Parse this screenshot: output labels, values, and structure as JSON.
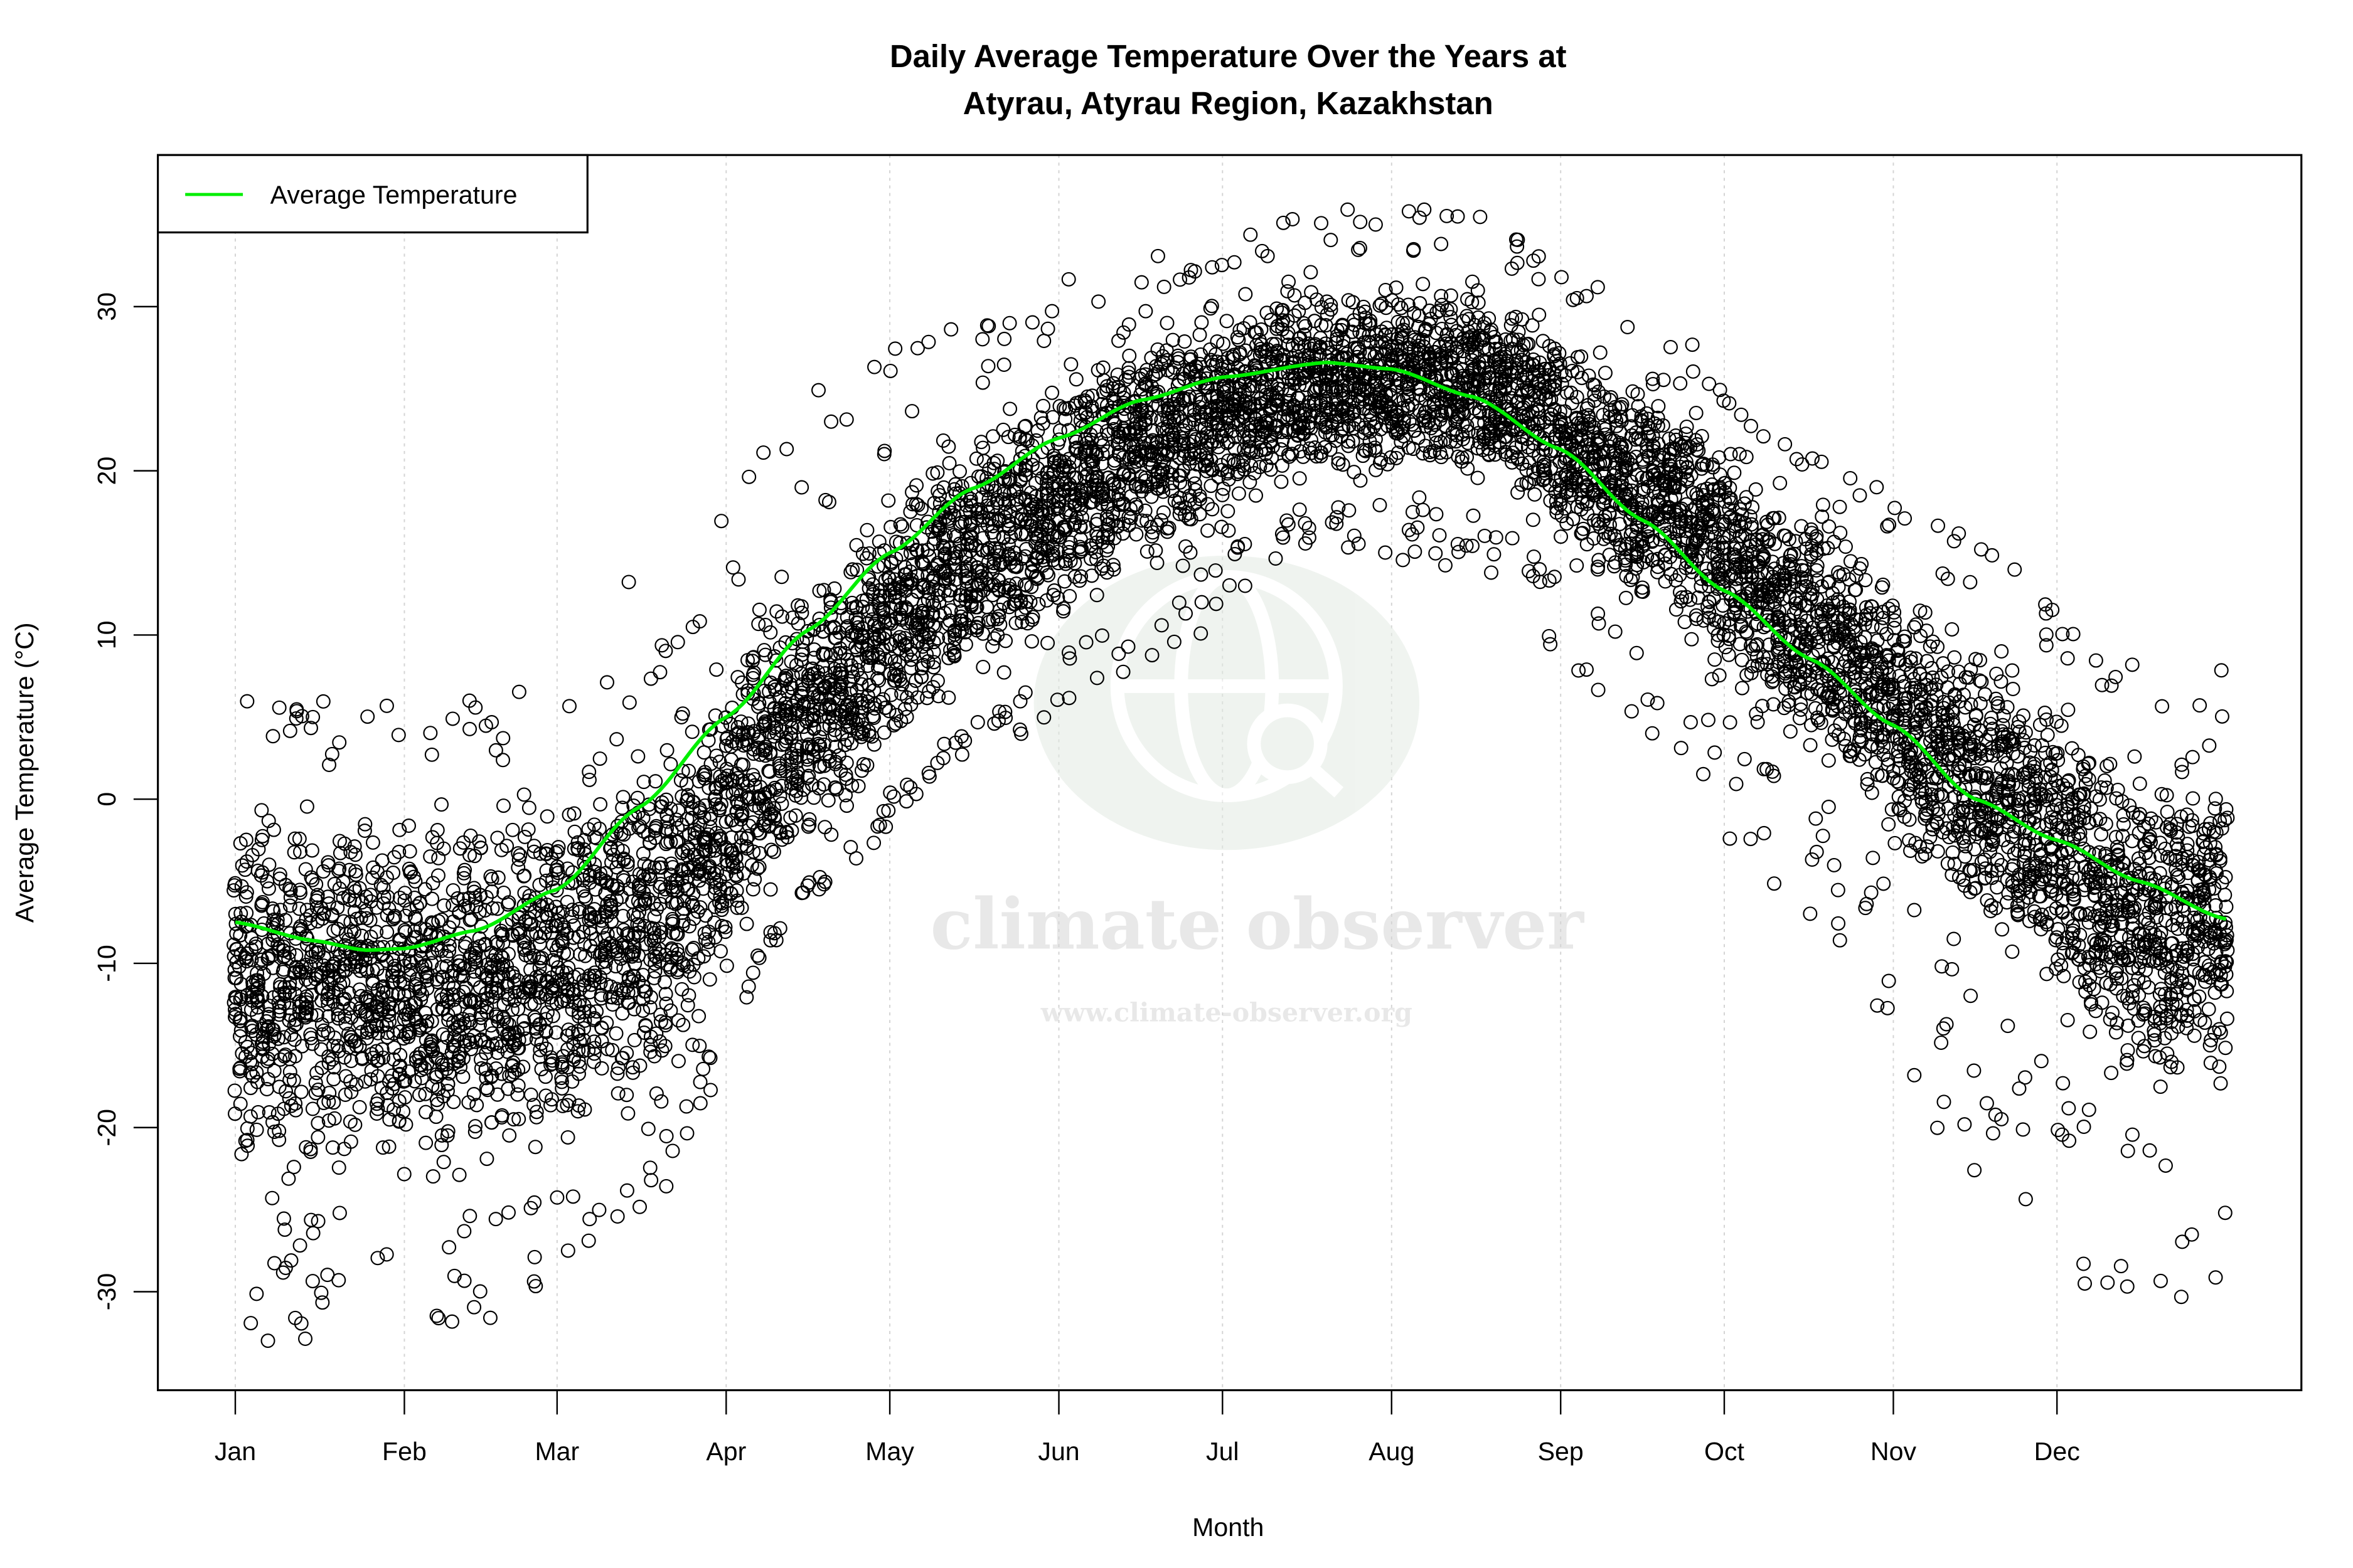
{
  "chart_data": {
    "type": "scatter",
    "title": [
      "Daily Average Temperature Over the Years at",
      "Atyrau, Atyrau Region, Kazakhstan"
    ],
    "xlabel": "Month",
    "ylabel": "Average Temperature (°C)",
    "x_ticks": [
      {
        "label": "Jan",
        "day": 1
      },
      {
        "label": "Feb",
        "day": 32
      },
      {
        "label": "Mar",
        "day": 60
      },
      {
        "label": "Apr",
        "day": 91
      },
      {
        "label": "May",
        "day": 121
      },
      {
        "label": "Jun",
        "day": 152
      },
      {
        "label": "Jul",
        "day": 182
      },
      {
        "label": "Aug",
        "day": 213
      },
      {
        "label": "Sep",
        "day": 244
      },
      {
        "label": "Oct",
        "day": 274
      },
      {
        "label": "Nov",
        "day": 305
      },
      {
        "label": "Dec",
        "day": 335
      }
    ],
    "xlim": [
      1,
      366
    ],
    "ylim": [
      -35,
      37
    ],
    "y_ticks": [
      -30,
      -20,
      -10,
      0,
      10,
      20,
      30
    ],
    "grid": "vertical dotted at month ticks",
    "legend": {
      "position": "top-left",
      "entries": [
        {
          "name": "Average Temperature",
          "color": "#00ee00"
        }
      ]
    },
    "series": [
      {
        "name": "Average Temperature",
        "type": "line",
        "color": "#00ee00",
        "x": [
          1,
          15,
          25,
          32,
          45,
          60,
          75,
          91,
          106,
          121,
          136,
          152,
          167,
          182,
          201,
          213,
          228,
          244,
          259,
          274,
          290,
          305,
          320,
          335,
          350,
          366
        ],
        "y": [
          -7.5,
          -8.6,
          -9.2,
          -9.1,
          -8.0,
          -5.5,
          -0.5,
          5.0,
          10.3,
          15.0,
          18.9,
          22.0,
          24.3,
          25.7,
          26.6,
          26.2,
          24.5,
          21.3,
          17.0,
          12.7,
          8.5,
          4.5,
          0.0,
          -2.5,
          -5.0,
          -7.3
        ]
      },
      {
        "name": "",
        "type": "scatter",
        "marker": "open-circle",
        "color": "#000000",
        "description_of_spread_by_month": [
          {
            "month": "Jan",
            "typical_max": 2,
            "typical_min": -25,
            "extreme_min": -33,
            "extreme_max": 6
          },
          {
            "month": "Feb",
            "typical_max": 2,
            "typical_min": -25,
            "extreme_min": -33,
            "extreme_max": 7
          },
          {
            "month": "Mar",
            "typical_max": 6,
            "typical_min": -22,
            "extreme_min": -26,
            "extreme_max": 14
          },
          {
            "month": "Apr",
            "typical_max": 16,
            "typical_min": -5,
            "extreme_min": -6,
            "extreme_max": 25
          },
          {
            "month": "May",
            "typical_max": 25,
            "typical_min": 5,
            "extreme_min": 3,
            "extreme_max": 30
          },
          {
            "month": "Jun",
            "typical_max": 31,
            "typical_min": 12,
            "extreme_min": 7,
            "extreme_max": 33
          },
          {
            "month": "Jul",
            "typical_max": 33,
            "typical_min": 18,
            "extreme_min": 15,
            "extreme_max": 36
          },
          {
            "month": "Aug",
            "typical_max": 33,
            "typical_min": 18,
            "extreme_min": 14,
            "extreme_max": 36
          },
          {
            "month": "Sep",
            "typical_max": 28,
            "typical_min": 10,
            "extreme_min": 3,
            "extreme_max": 30
          },
          {
            "month": "Oct",
            "typical_max": 20,
            "typical_min": 1,
            "extreme_min": -9,
            "extreme_max": 21
          },
          {
            "month": "Nov",
            "typical_max": 12,
            "typical_min": -10,
            "extreme_min": -23,
            "extreme_max": 16
          },
          {
            "month": "Dec",
            "typical_max": 5,
            "typical_min": -20,
            "extreme_min": -33,
            "extreme_max": 8
          }
        ]
      }
    ]
  },
  "watermark": {
    "logo_text": "climate observer",
    "url": "www.climate-observer.org"
  }
}
